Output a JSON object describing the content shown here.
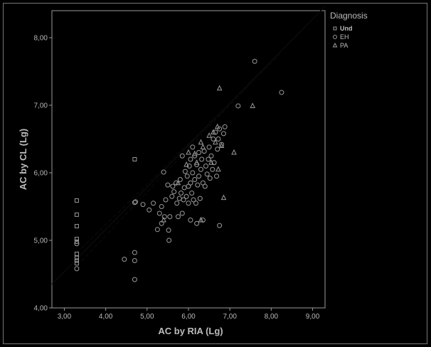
{
  "chart_data": {
    "type": "scatter",
    "xlabel": "AC by RIA (Lg)",
    "ylabel": "AC by CL (Lg)",
    "xlim": [
      2.7,
      9.3
    ],
    "ylim": [
      4.0,
      8.4
    ],
    "x_ticks": [
      3.0,
      4.0,
      5.0,
      6.0,
      7.0,
      8.0,
      9.0
    ],
    "y_ticks": [
      4.0,
      5.0,
      6.0,
      7.0,
      8.0
    ],
    "x_tick_labels": [
      "3,00",
      "4,00",
      "5,00",
      "6,00",
      "7,00",
      "8,00",
      "9,00"
    ],
    "y_tick_labels": [
      "4,00",
      "5,00",
      "6,00",
      "7,00",
      "8,00"
    ],
    "grid": false,
    "legend_position": "right",
    "legend_title": "Diagnosis",
    "colors": {
      "background": "#000000",
      "plot_background": "#000000",
      "axis": "#9a9a9a",
      "marker": "#9a9a9a",
      "fit_line": "#0a0a0a",
      "ci_line": "#0a0a0a",
      "text": "#bdbdbd"
    },
    "fit_line": {
      "slope": 0.623,
      "intercept": 2.67,
      "x_range": [
        2.7,
        9.3
      ]
    },
    "confidence_band": {
      "upper": {
        "slope": 0.6,
        "intercept": 2.83,
        "x_range": [
          3.3,
          8.2
        ]
      },
      "lower": {
        "slope": 0.645,
        "intercept": 2.49,
        "x_range": [
          3.3,
          8.2
        ]
      }
    },
    "series": [
      {
        "name": "Und",
        "marker": "square",
        "points": [
          [
            3.3,
            5.59
          ],
          [
            3.3,
            5.38
          ],
          [
            3.3,
            5.21
          ],
          [
            3.3,
            5.02
          ],
          [
            3.3,
            4.98
          ],
          [
            3.3,
            4.8
          ],
          [
            3.3,
            4.74
          ],
          [
            3.3,
            4.7
          ],
          [
            3.3,
            4.66
          ],
          [
            4.7,
            6.2
          ]
        ]
      },
      {
        "name": "EH",
        "marker": "circle",
        "points": [
          [
            3.3,
            4.58
          ],
          [
            3.3,
            4.95
          ],
          [
            4.45,
            4.72
          ],
          [
            4.7,
            4.7
          ],
          [
            4.7,
            4.82
          ],
          [
            4.7,
            4.42
          ],
          [
            4.7,
            5.56
          ],
          [
            4.72,
            5.57
          ],
          [
            4.9,
            5.53
          ],
          [
            5.05,
            5.45
          ],
          [
            5.15,
            5.55
          ],
          [
            5.25,
            5.16
          ],
          [
            5.3,
            5.4
          ],
          [
            5.35,
            5.5
          ],
          [
            5.4,
            6.01
          ],
          [
            5.42,
            5.35
          ],
          [
            5.45,
            5.6
          ],
          [
            5.5,
            5.82
          ],
          [
            5.52,
            5.15
          ],
          [
            5.53,
            5.0
          ],
          [
            5.55,
            5.35
          ],
          [
            5.6,
            5.65
          ],
          [
            5.62,
            5.8
          ],
          [
            5.65,
            5.72
          ],
          [
            5.7,
            5.85
          ],
          [
            5.72,
            5.55
          ],
          [
            5.75,
            5.35
          ],
          [
            5.78,
            5.62
          ],
          [
            5.8,
            5.9
          ],
          [
            5.82,
            5.7
          ],
          [
            5.85,
            5.4
          ],
          [
            5.88,
            5.6
          ],
          [
            5.9,
            5.78
          ],
          [
            5.92,
            6.02
          ],
          [
            5.95,
            5.65
          ],
          [
            5.97,
            5.95
          ],
          [
            6.0,
            5.55
          ],
          [
            6.0,
            5.8
          ],
          [
            6.02,
            6.1
          ],
          [
            6.05,
            5.85
          ],
          [
            6.05,
            6.2
          ],
          [
            6.08,
            5.7
          ],
          [
            6.1,
            6.38
          ],
          [
            6.1,
            6.0
          ],
          [
            6.12,
            5.6
          ],
          [
            6.15,
            5.9
          ],
          [
            6.15,
            6.25
          ],
          [
            6.18,
            5.55
          ],
          [
            6.2,
            5.25
          ],
          [
            6.2,
            6.12
          ],
          [
            6.22,
            5.82
          ],
          [
            6.25,
            6.3
          ],
          [
            6.25,
            5.95
          ],
          [
            6.28,
            5.62
          ],
          [
            6.3,
            6.05
          ],
          [
            6.32,
            6.2
          ],
          [
            6.35,
            5.85
          ],
          [
            6.38,
            6.32
          ],
          [
            6.4,
            5.8
          ],
          [
            6.42,
            6.1
          ],
          [
            6.45,
            5.98
          ],
          [
            6.48,
            6.2
          ],
          [
            6.5,
            6.38
          ],
          [
            6.52,
            5.92
          ],
          [
            6.55,
            6.25
          ],
          [
            6.58,
            6.05
          ],
          [
            6.6,
            6.5
          ],
          [
            6.62,
            6.15
          ],
          [
            6.65,
            6.6
          ],
          [
            6.68,
            5.95
          ],
          [
            6.7,
            6.35
          ],
          [
            6.72,
            6.5
          ],
          [
            6.75,
            6.65
          ],
          [
            6.75,
            5.22
          ],
          [
            6.8,
            6.42
          ],
          [
            6.85,
            6.58
          ],
          [
            6.88,
            6.68
          ],
          [
            7.2,
            6.99
          ],
          [
            7.6,
            7.65
          ],
          [
            8.25,
            7.19
          ],
          [
            5.35,
            5.25
          ],
          [
            6.05,
            5.3
          ],
          [
            6.35,
            5.3
          ],
          [
            5.85,
            6.25
          ]
        ]
      },
      {
        "name": "PA",
        "marker": "triangle",
        "points": [
          [
            5.4,
            5.3
          ],
          [
            5.75,
            5.85
          ],
          [
            5.95,
            6.12
          ],
          [
            6.0,
            6.3
          ],
          [
            6.15,
            6.28
          ],
          [
            6.2,
            6.15
          ],
          [
            6.3,
            6.45
          ],
          [
            6.35,
            6.38
          ],
          [
            6.5,
            6.55
          ],
          [
            6.55,
            6.15
          ],
          [
            6.6,
            6.6
          ],
          [
            6.65,
            6.45
          ],
          [
            6.7,
            6.68
          ],
          [
            6.72,
            6.05
          ],
          [
            6.75,
            7.25
          ],
          [
            6.8,
            6.4
          ],
          [
            6.85,
            5.63
          ],
          [
            7.1,
            6.3
          ],
          [
            7.55,
            6.99
          ],
          [
            6.3,
            5.3
          ]
        ]
      }
    ]
  }
}
